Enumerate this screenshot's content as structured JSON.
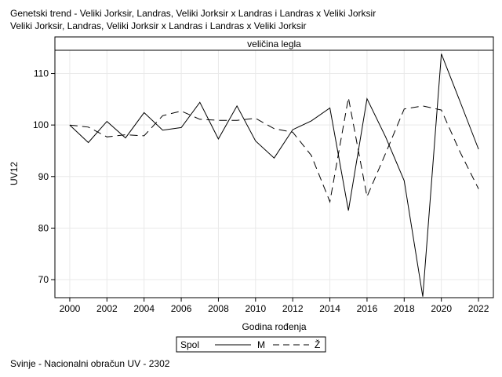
{
  "title_line1": "Genetski trend - Veliki Jorksir, Landras, Veliki Jorksir x Landras i Landras x Veliki Jorksir",
  "title_line2": "Veliki Jorksir, Landras, Veliki Jorksir x Landras i Landras x Veliki Jorksir",
  "footnote": "Svinje - Nacionalni obračun UV - 2302",
  "chart_data": {
    "type": "line",
    "panel_label": "veličina legla",
    "xlabel": "Godina rođenja",
    "ylabel": "UV12",
    "xlim": [
      1999.2,
      2022.8
    ],
    "ylim": [
      66.5,
      114.5
    ],
    "xticks": [
      2000,
      2002,
      2004,
      2006,
      2008,
      2010,
      2012,
      2014,
      2016,
      2018,
      2020,
      2022
    ],
    "yticks": [
      70,
      80,
      90,
      100,
      110
    ],
    "grid": true,
    "legend": {
      "title": "Spol",
      "placement": "bottom-center"
    },
    "x": [
      2000,
      2001,
      2002,
      2003,
      2004,
      2005,
      2006,
      2007,
      2008,
      2009,
      2010,
      2011,
      2012,
      2013,
      2014,
      2015,
      2016,
      2017,
      2018,
      2019,
      2020,
      2021,
      2022
    ],
    "series": [
      {
        "name": "M",
        "dash": "solid",
        "values": [
          100.0,
          96.6,
          100.7,
          97.5,
          102.4,
          99.0,
          99.5,
          104.4,
          97.3,
          103.7,
          96.9,
          93.6,
          99.1,
          100.8,
          103.3,
          83.4,
          105.1,
          97.7,
          89.2,
          66.7,
          113.8,
          104.6,
          95.3
        ]
      },
      {
        "name": "Ž",
        "dash": "dashed",
        "values": [
          100.0,
          99.6,
          97.7,
          98.1,
          97.9,
          101.8,
          102.7,
          101.1,
          100.9,
          100.9,
          101.3,
          99.3,
          98.6,
          94.1,
          85.1,
          105.3,
          86.1,
          94.5,
          103.1,
          103.7,
          102.9,
          94.8,
          87.6
        ]
      }
    ]
  }
}
